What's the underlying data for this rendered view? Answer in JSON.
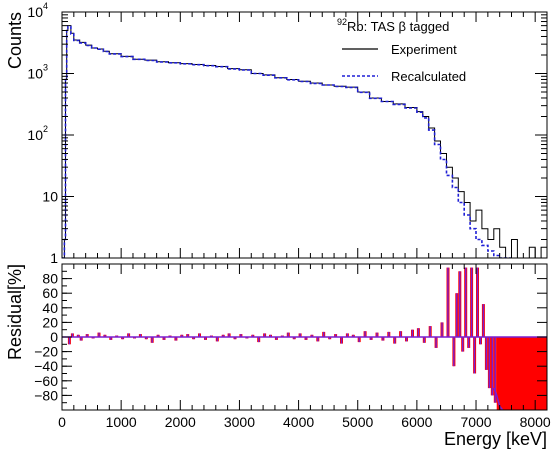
{
  "chart_data": [
    {
      "type": "line",
      "scale": "log",
      "ylabel": "Counts",
      "xlim": [
        0,
        8200
      ],
      "ylim": [
        1,
        10000
      ],
      "xticks": [
        0,
        1000,
        2000,
        3000,
        4000,
        5000,
        6000,
        7000,
        8000
      ],
      "yticks": [
        {
          "value": 1,
          "label": "1",
          "exp": ""
        },
        {
          "value": 10,
          "label": "10",
          "exp": ""
        },
        {
          "value": 100,
          "label": "10",
          "exp": "2"
        },
        {
          "value": 1000,
          "label": "10",
          "exp": "3"
        },
        {
          "value": 10000,
          "label": "10",
          "exp": "4"
        }
      ],
      "legend": {
        "placement": "top-right",
        "title_isotope_mass": "92",
        "title_rest": "Rb: TAS β tagged",
        "entries": [
          {
            "label": "Experiment",
            "style": "solid",
            "color": "#000000"
          },
          {
            "label": "Recalculated",
            "style": "dashed",
            "color": "#1f1fd6"
          }
        ]
      },
      "series": [
        {
          "name": "Experiment",
          "color": "#000000",
          "x": [
            0,
            40,
            60,
            80,
            100,
            150,
            200,
            300,
            400,
            500,
            600,
            700,
            800,
            1000,
            1200,
            1400,
            1600,
            1800,
            2000,
            2200,
            2400,
            2600,
            2800,
            3000,
            3200,
            3400,
            3600,
            3800,
            4000,
            4200,
            4400,
            4600,
            4800,
            5000,
            5200,
            5400,
            5600,
            5800,
            6000,
            6100,
            6200,
            6300,
            6400,
            6500,
            6600,
            6700,
            6800,
            6900,
            7000,
            7100,
            7200,
            7300,
            7400,
            7500,
            7600,
            7700,
            7800,
            7900,
            8000,
            8100
          ],
          "y": [
            1,
            2,
            800,
            5000,
            6000,
            4500,
            3500,
            3200,
            2900,
            2600,
            2500,
            2300,
            2100,
            1900,
            1700,
            1650,
            1550,
            1500,
            1450,
            1400,
            1350,
            1300,
            1200,
            1150,
            1000,
            950,
            850,
            800,
            750,
            700,
            650,
            620,
            600,
            500,
            400,
            350,
            320,
            280,
            240,
            200,
            130,
            80,
            50,
            30,
            20,
            12,
            8,
            4,
            6,
            3,
            2,
            3,
            1.5,
            1,
            2,
            1,
            1,
            1.5,
            1,
            1.5
          ]
        },
        {
          "name": "Recalculated",
          "color": "#1f1fd6",
          "x": [
            0,
            40,
            60,
            80,
            100,
            150,
            200,
            300,
            400,
            500,
            600,
            700,
            800,
            1000,
            1200,
            1400,
            1600,
            1800,
            2000,
            2200,
            2400,
            2600,
            2800,
            3000,
            3200,
            3400,
            3600,
            3800,
            4000,
            4200,
            4400,
            4600,
            4800,
            5000,
            5200,
            5400,
            5600,
            5800,
            6000,
            6100,
            6200,
            6300,
            6400,
            6500,
            6600,
            6700,
            6800,
            6900,
            7000,
            7100,
            7200,
            7300,
            7400,
            7500
          ],
          "y": [
            1,
            2,
            800,
            5000,
            5800,
            4400,
            3450,
            3150,
            2850,
            2600,
            2480,
            2280,
            2080,
            1880,
            1700,
            1630,
            1540,
            1490,
            1440,
            1390,
            1340,
            1290,
            1190,
            1140,
            1000,
            940,
            850,
            790,
            740,
            690,
            650,
            615,
            595,
            495,
            395,
            350,
            315,
            275,
            235,
            190,
            120,
            70,
            40,
            22,
            14,
            8,
            5,
            3,
            2,
            1.6,
            1.3,
            1.1,
            1.0,
            1.0
          ]
        }
      ]
    },
    {
      "type": "bar",
      "ylabel": "Residual[%]",
      "xlabel": "Energy [keV]",
      "xlim": [
        0,
        8200
      ],
      "ylim": [
        -100,
        100
      ],
      "xticks": [
        0,
        1000,
        2000,
        3000,
        4000,
        5000,
        6000,
        7000,
        8000
      ],
      "yticks": [
        80,
        60,
        40,
        20,
        0,
        -20,
        -40,
        -60,
        -80
      ],
      "bin_width": 50,
      "color_fill": "#ff0000",
      "color_line": "#7a1fd0",
      "x": [
        100,
        150,
        250,
        300,
        400,
        500,
        600,
        700,
        800,
        900,
        1000,
        1100,
        1200,
        1300,
        1400,
        1500,
        1600,
        1700,
        1800,
        1900,
        2000,
        2100,
        2200,
        2300,
        2400,
        2500,
        2600,
        2700,
        2800,
        2900,
        3000,
        3100,
        3200,
        3300,
        3400,
        3500,
        3600,
        3700,
        3800,
        3900,
        4000,
        4100,
        4200,
        4300,
        4400,
        4500,
        4600,
        4700,
        4800,
        4900,
        5000,
        5100,
        5200,
        5300,
        5400,
        5500,
        5600,
        5700,
        5800,
        5900,
        6000,
        6100,
        6200,
        6300,
        6400,
        6500,
        6600,
        6650,
        6700,
        6750,
        6800,
        6850,
        6900,
        6950,
        7000,
        7050,
        7100,
        7150,
        7200,
        7250,
        7300
      ],
      "y": [
        -10,
        5,
        3,
        -5,
        4,
        -2,
        6,
        3,
        -4,
        2,
        -3,
        5,
        -2,
        4,
        -3,
        -8,
        3,
        -4,
        2,
        -5,
        3,
        4,
        -3,
        5,
        -4,
        2,
        -6,
        3,
        5,
        -3,
        4,
        -2,
        3,
        -7,
        5,
        3,
        -4,
        2,
        6,
        -3,
        5,
        -4,
        3,
        -6,
        7,
        -3,
        4,
        -9,
        5,
        3,
        -7,
        8,
        -4,
        6,
        -5,
        7,
        -9,
        8,
        -6,
        10,
        12,
        -8,
        15,
        -15,
        20,
        95,
        -40,
        60,
        90,
        -20,
        95,
        -15,
        95,
        -50,
        95,
        -10,
        45,
        -45,
        -70,
        -80,
        -90
      ]
    }
  ]
}
